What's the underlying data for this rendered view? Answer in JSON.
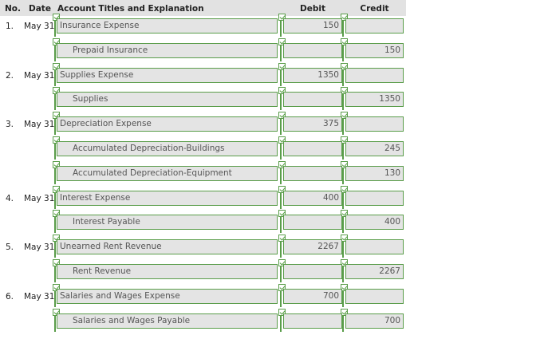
{
  "header": {
    "no": "No.",
    "date": "Date",
    "account": "Account Titles and Explanation",
    "debit": "Debit",
    "credit": "Credit"
  },
  "entries": [
    {
      "no": "1.",
      "date": "May 31",
      "account": "Insurance Expense",
      "debit": "150",
      "credit": ""
    },
    {
      "no": "",
      "date": "",
      "account": "Prepaid Insurance",
      "debit": "",
      "credit": "150"
    },
    {
      "no": "2.",
      "date": "May 31",
      "account": "Supplies Expense",
      "debit": "1350",
      "credit": ""
    },
    {
      "no": "",
      "date": "",
      "account": "Supplies",
      "debit": "",
      "credit": "1350"
    },
    {
      "no": "3.",
      "date": "May 31",
      "account": "Depreciation Expense",
      "debit": "375",
      "credit": ""
    },
    {
      "no": "",
      "date": "",
      "account": "Accumulated Depreciation-Buildings",
      "debit": "",
      "credit": "245"
    },
    {
      "no": "",
      "date": "",
      "account": "Accumulated Depreciation-Equipment",
      "debit": "",
      "credit": "130"
    },
    {
      "no": "4.",
      "date": "May 31",
      "account": "Interest Expense",
      "debit": "400",
      "credit": ""
    },
    {
      "no": "",
      "date": "",
      "account": "Interest Payable",
      "debit": "",
      "credit": "400"
    },
    {
      "no": "5.",
      "date": "May 31",
      "account": "Unearned Rent Revenue",
      "debit": "2267",
      "credit": ""
    },
    {
      "no": "",
      "date": "",
      "account": "Rent Revenue",
      "debit": "",
      "credit": "2267"
    },
    {
      "no": "6.",
      "date": "May 31",
      "account": "Salaries and Wages Expense",
      "debit": "700",
      "credit": ""
    },
    {
      "no": "",
      "date": "",
      "account": "Salaries and Wages Payable",
      "debit": "",
      "credit": "700"
    }
  ],
  "colors": {
    "header_bg": "#e2e2e2",
    "field_bg": "#e4e4e4",
    "correct_border": "#5a9d4a"
  },
  "icons": {
    "correct": "check-icon"
  }
}
